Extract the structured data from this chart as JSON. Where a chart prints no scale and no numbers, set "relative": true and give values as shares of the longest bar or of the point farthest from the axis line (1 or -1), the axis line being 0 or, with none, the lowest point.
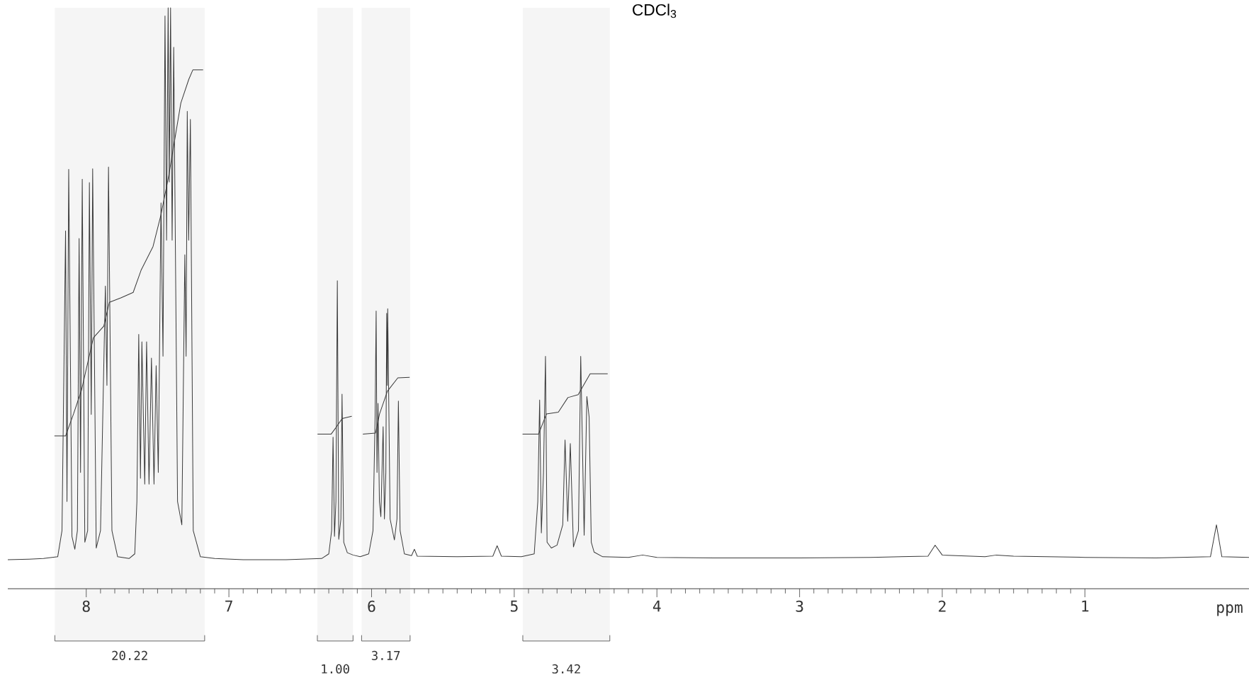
{
  "chart_data": {
    "type": "line",
    "title": "CDCl$_{3}$",
    "xlabel": "ppm",
    "relative": true,
    "xlim": [
      8.55,
      -0.15
    ],
    "xticks": [
      8,
      7,
      6,
      5,
      4,
      3,
      2,
      1
    ],
    "marker": "none",
    "line_style": "solid",
    "series": [
      {
        "color": "#3a3a3a",
        "x": [
          8.55,
          8.4,
          8.3,
          8.2,
          8.17,
          8.145,
          8.135,
          8.123,
          8.1,
          8.08,
          8.062,
          8.05,
          8.04,
          8.028,
          8.01,
          7.99,
          7.978,
          7.965,
          7.955,
          7.93,
          7.9,
          7.866,
          7.855,
          7.844,
          7.82,
          7.78,
          7.7,
          7.66,
          7.645,
          7.632,
          7.62,
          7.61,
          7.59,
          7.577,
          7.56,
          7.543,
          7.525,
          7.51,
          7.495,
          7.476,
          7.462,
          7.448,
          7.437,
          7.426,
          7.418,
          7.409,
          7.398,
          7.387,
          7.36,
          7.33,
          7.309,
          7.3,
          7.292,
          7.282,
          7.27,
          7.25,
          7.2,
          7.1,
          6.9,
          6.6,
          6.35,
          6.3,
          6.28,
          6.27,
          6.26,
          6.25,
          6.24,
          6.23,
          6.215,
          6.207,
          6.195,
          6.17,
          6.13,
          6.08,
          6.02,
          5.99,
          5.975,
          5.968,
          5.962,
          5.955,
          5.945,
          5.935,
          5.919,
          5.91,
          5.9,
          5.894,
          5.89,
          5.887,
          5.87,
          5.84,
          5.822,
          5.812,
          5.8,
          5.77,
          5.72,
          5.7,
          5.68,
          5.4,
          5.15,
          5.12,
          5.09,
          4.95,
          4.86,
          4.835,
          4.822,
          4.81,
          4.795,
          4.781,
          4.77,
          4.74,
          4.7,
          4.66,
          4.644,
          4.625,
          4.607,
          4.585,
          4.55,
          4.534,
          4.51,
          4.491,
          4.475,
          4.46,
          4.44,
          4.38,
          4.2,
          4.1,
          4.0,
          3.6,
          3.0,
          2.5,
          2.1,
          2.05,
          2.0,
          1.7,
          1.62,
          1.5,
          1.0,
          0.5,
          0.12,
          0.078,
          0.04,
          -0.15
        ],
        "values": [
          0.05,
          0.051,
          0.052,
          0.055,
          0.1,
          0.616,
          0.15,
          0.722,
          0.09,
          0.068,
          0.1,
          0.603,
          0.2,
          0.705,
          0.08,
          0.1,
          0.699,
          0.3,
          0.723,
          0.07,
          0.1,
          0.521,
          0.35,
          0.726,
          0.1,
          0.055,
          0.052,
          0.06,
          0.15,
          0.438,
          0.19,
          0.425,
          0.18,
          0.425,
          0.18,
          0.397,
          0.18,
          0.384,
          0.2,
          0.664,
          0.4,
          0.986,
          0.6,
          1.0,
          0.7,
          1.0,
          0.6,
          0.932,
          0.15,
          0.11,
          0.575,
          0.4,
          0.822,
          0.6,
          0.808,
          0.1,
          0.055,
          0.052,
          0.05,
          0.05,
          0.052,
          0.06,
          0.1,
          0.261,
          0.09,
          0.15,
          0.53,
          0.085,
          0.12,
          0.335,
          0.08,
          0.062,
          0.058,
          0.055,
          0.06,
          0.1,
          0.3,
          0.478,
          0.2,
          0.319,
          0.15,
          0.124,
          0.279,
          0.12,
          0.2,
          0.474,
          0.35,
          0.482,
          0.12,
          0.084,
          0.12,
          0.323,
          0.1,
          0.06,
          0.057,
          0.068,
          0.056,
          0.055,
          0.056,
          0.074,
          0.056,
          0.055,
          0.06,
          0.15,
          0.325,
          0.096,
          0.2,
          0.4,
          0.08,
          0.07,
          0.075,
          0.11,
          0.256,
          0.116,
          0.25,
          0.072,
          0.1,
          0.4,
          0.092,
          0.331,
          0.295,
          0.08,
          0.063,
          0.055,
          0.054,
          0.058,
          0.054,
          0.053,
          0.053,
          0.054,
          0.056,
          0.075,
          0.058,
          0.055,
          0.058,
          0.056,
          0.054,
          0.053,
          0.055,
          0.11,
          0.055,
          0.054
        ]
      },
      {
        "color": "#3a3a3a",
        "x": [
          8.223,
          8.145,
          8.089,
          8.033,
          7.95,
          7.877,
          7.838,
          7.755,
          7.671,
          7.616,
          7.532,
          7.476,
          7.421,
          7.337,
          7.281,
          7.253,
          7.181,
          7.0,
          6.379,
          6.284,
          6.251,
          6.206,
          6.139,
          6.1,
          6.061,
          5.972,
          5.944,
          5.889,
          5.816,
          5.733,
          5.3,
          4.942,
          4.83,
          4.774,
          4.691,
          4.624,
          4.552,
          4.468,
          4.345
        ],
        "values": [
          0.263,
          0.263,
          0.301,
          0.342,
          0.432,
          0.452,
          0.493,
          0.501,
          0.51,
          0.548,
          0.589,
          0.644,
          0.712,
          0.836,
          0.877,
          0.893,
          0.893,
          null,
          0.266,
          0.266,
          0.277,
          0.293,
          0.297,
          null,
          0.266,
          0.268,
          0.301,
          0.34,
          0.363,
          0.364,
          null,
          0.266,
          0.266,
          0.301,
          0.304,
          0.329,
          0.334,
          0.37,
          0.37
        ]
      }
    ],
    "bands": [
      {
        "axis": "x",
        "from": 8.22,
        "to": 7.17,
        "label": "20.22"
      },
      {
        "axis": "x",
        "from": 6.38,
        "to": 6.13,
        "label": "1.00"
      },
      {
        "axis": "x",
        "from": 6.07,
        "to": 5.73,
        "label": "3.17"
      },
      {
        "axis": "x",
        "from": 4.94,
        "to": 4.33,
        "label": "3.42"
      }
    ]
  }
}
